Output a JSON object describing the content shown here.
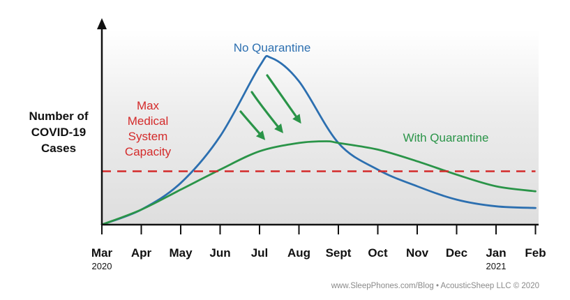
{
  "chart_data": {
    "type": "line",
    "ylabel_lines": [
      "Number of",
      "COVID-19",
      "Cases"
    ],
    "x_categories": [
      "Mar",
      "Apr",
      "May",
      "Jun",
      "Jul",
      "Aug",
      "Sept",
      "Oct",
      "Nov",
      "Dec",
      "Jan",
      "Feb"
    ],
    "x_year_labels": [
      {
        "month": "Mar",
        "year": "2020"
      },
      {
        "month": "Jan",
        "year": "2021"
      }
    ],
    "y_axis_unlabeled": true,
    "ylim": [
      0,
      1
    ],
    "series": [
      {
        "name": "No Quarantine",
        "color": "#2c6fb0",
        "points": [
          {
            "x": 0,
            "y": 0.0
          },
          {
            "x": 1,
            "y": 0.09
          },
          {
            "x": 2,
            "y": 0.25
          },
          {
            "x": 3,
            "y": 0.53
          },
          {
            "x": 4,
            "y": 0.95
          },
          {
            "x": 4.3,
            "y": 1.0
          },
          {
            "x": 5,
            "y": 0.86
          },
          {
            "x": 6,
            "y": 0.49
          },
          {
            "x": 7,
            "y": 0.33
          },
          {
            "x": 8,
            "y": 0.23
          },
          {
            "x": 9,
            "y": 0.15
          },
          {
            "x": 10,
            "y": 0.11
          },
          {
            "x": 11,
            "y": 0.1
          }
        ]
      },
      {
        "name": "With Quarantine",
        "color": "#2a9448",
        "points": [
          {
            "x": 0,
            "y": 0.0
          },
          {
            "x": 1,
            "y": 0.09
          },
          {
            "x": 2,
            "y": 0.21
          },
          {
            "x": 3,
            "y": 0.33
          },
          {
            "x": 4,
            "y": 0.44
          },
          {
            "x": 5,
            "y": 0.49
          },
          {
            "x": 5.7,
            "y": 0.5
          },
          {
            "x": 6,
            "y": 0.49
          },
          {
            "x": 7,
            "y": 0.45
          },
          {
            "x": 8,
            "y": 0.38
          },
          {
            "x": 9,
            "y": 0.3
          },
          {
            "x": 10,
            "y": 0.23
          },
          {
            "x": 11,
            "y": 0.2
          }
        ]
      }
    ],
    "threshold": {
      "label_lines": [
        "Max",
        "Medical",
        "System",
        "Capacity"
      ],
      "value": 0.32,
      "color": "#d42a2a",
      "style": "dashed"
    },
    "annotations": [
      {
        "text": "No Quarantine",
        "color": "#2c6fb0"
      },
      {
        "text": "With Quarantine",
        "color": "#2a9448"
      }
    ],
    "arrow_count": 3,
    "arrow_color": "#2a9448",
    "grid": false,
    "background": "gradient gray"
  },
  "credit": "www.SleepPhones.com/Blog • AcousticSheep LLC © 2020"
}
